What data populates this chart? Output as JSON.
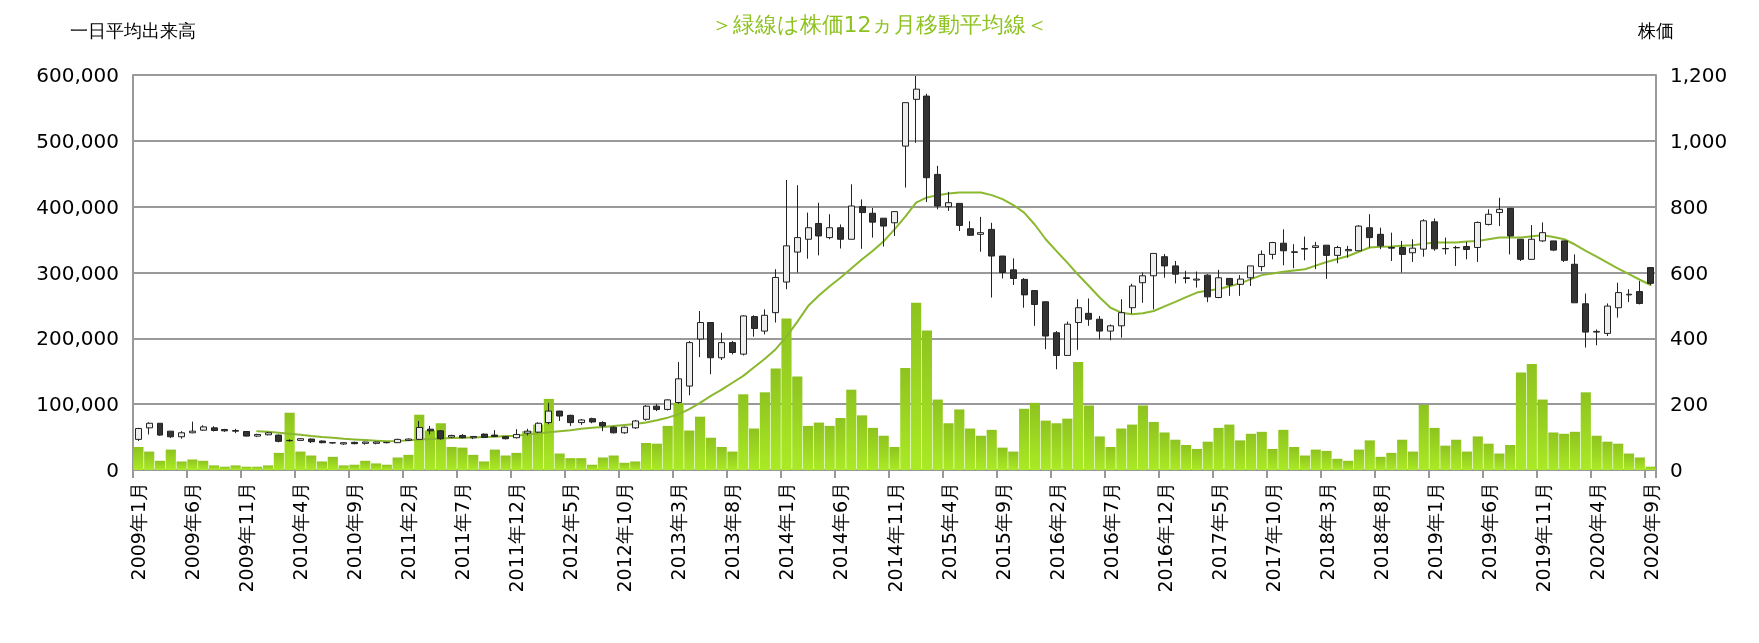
{
  "chart_data": {
    "type": "bar",
    "title": "＞緑線は株価12ヵ月移動平均線＜",
    "ylabel": "一日平均出来高",
    "y2label": "株価",
    "categories": [
      "2009年1月",
      null,
      null,
      null,
      null,
      "2009年6月",
      null,
      null,
      null,
      null,
      "2009年11月",
      null,
      null,
      null,
      null,
      "2010年4月",
      null,
      null,
      null,
      null,
      "2010年9月",
      null,
      null,
      null,
      null,
      "2011年2月",
      null,
      null,
      null,
      null,
      "2011年7月",
      null,
      null,
      null,
      null,
      "2011年12月",
      null,
      null,
      null,
      null,
      "2012年5月",
      null,
      null,
      null,
      null,
      "2012年10月",
      null,
      null,
      null,
      null,
      "2013年3月",
      null,
      null,
      null,
      null,
      "2013年8月",
      null,
      null,
      null,
      null,
      "2014年1月",
      null,
      null,
      null,
      null,
      "2014年6月",
      null,
      null,
      null,
      null,
      "2014年11月",
      null,
      null,
      null,
      null,
      "2015年4月",
      null,
      null,
      null,
      null,
      "2015年9月",
      null,
      null,
      null,
      null,
      "2016年2月",
      null,
      null,
      null,
      null,
      "2016年7月",
      null,
      null,
      null,
      null,
      "2016年12月",
      null,
      null,
      null,
      null,
      "2017年5月",
      null,
      null,
      null,
      null,
      "2017年10月",
      null,
      null,
      null,
      null,
      "2018年3月",
      null,
      null,
      null,
      null,
      "2018年8月",
      null,
      null,
      null,
      null,
      "2019年1月",
      null,
      null,
      null,
      null,
      "2019年6月",
      null,
      null,
      null,
      null,
      "2019年11月",
      null,
      null,
      null,
      null,
      "2020年4月",
      null,
      null,
      null,
      null,
      "2020年9月"
    ],
    "series": [
      {
        "color": "#8ec31f",
        "values": [
          35000,
          28000,
          14000,
          31000,
          13000,
          16000,
          14000,
          7000,
          5000,
          7000,
          5000,
          5000,
          7000,
          26000,
          87000,
          28000,
          22000,
          13000,
          20000,
          7000,
          8000,
          14000,
          10000,
          8000,
          19000,
          23000,
          84000,
          60000,
          71000,
          35000,
          34000,
          23000,
          13000,
          31000,
          22000,
          26000,
          59000,
          69000,
          108000,
          25000,
          18000,
          18000,
          8000,
          19000,
          22000,
          11000,
          13000,
          41000,
          40000,
          67000,
          102000,
          60000,
          81000,
          49000,
          35000,
          28000,
          115000,
          63000,
          118000,
          154000,
          230000,
          142000,
          67000,
          72000,
          67000,
          79000,
          122000,
          83000,
          64000,
          52000,
          35000,
          155000,
          254000,
          212000,
          107000,
          71000,
          92000,
          63000,
          52000,
          61000,
          34000,
          28000,
          93000,
          102000,
          75000,
          71000,
          78000,
          164000,
          98000,
          51000,
          35000,
          63000,
          69000,
          98000,
          73000,
          57000,
          46000,
          38000,
          32000,
          43000,
          64000,
          69000,
          45000,
          55000,
          58000,
          32000,
          61000,
          35000,
          22000,
          31000,
          29000,
          17000,
          14000,
          31000,
          45000,
          20000,
          26000,
          46000,
          28000,
          99000,
          64000,
          37000,
          46000,
          28000,
          51000,
          40000,
          25000,
          38000,
          148000,
          161000,
          107000,
          57000,
          55000,
          58000,
          118000,
          52000,
          43000,
          40000,
          25000,
          19000,
          5000
        ]
      },
      {
        "type": "candlestick",
        "axis": "y2",
        "ohlc": [
          [
            93,
            128,
            88,
            126
          ],
          [
            128,
            145,
            108,
            142
          ],
          [
            142,
            142,
            104,
            106
          ],
          [
            118,
            118,
            97,
            101
          ],
          [
            101,
            118,
            95,
            113
          ],
          [
            113,
            147,
            112,
            118
          ],
          [
            121,
            136,
            119,
            131
          ],
          [
            128,
            133,
            117,
            120
          ],
          [
            123,
            125,
            116,
            119
          ],
          [
            120,
            125,
            112,
            118
          ],
          [
            117,
            118,
            102,
            103
          ],
          [
            103,
            110,
            100,
            108
          ],
          [
            107,
            116,
            105,
            113
          ],
          [
            106,
            108,
            84,
            87
          ],
          [
            89,
            93,
            86,
            90
          ],
          [
            90,
            97,
            88,
            95
          ],
          [
            94,
            96,
            82,
            86
          ],
          [
            88,
            90,
            81,
            83
          ],
          [
            82,
            84,
            80,
            83
          ],
          [
            79,
            84,
            76,
            83
          ],
          [
            84,
            86,
            78,
            80
          ],
          [
            81,
            86,
            77,
            85
          ],
          [
            81,
            86,
            78,
            85
          ],
          [
            83,
            85,
            81,
            84
          ],
          [
            83,
            95,
            82,
            93
          ],
          [
            90,
            96,
            88,
            94
          ],
          [
            93,
            149,
            91,
            129
          ],
          [
            124,
            134,
            108,
            119
          ],
          [
            119,
            121,
            92,
            95
          ],
          [
            100,
            107,
            97,
            105
          ],
          [
            105,
            109,
            96,
            98
          ],
          [
            98,
            103,
            94,
            102
          ],
          [
            109,
            111,
            97,
            99
          ],
          [
            106,
            121,
            100,
            102
          ],
          [
            101,
            103,
            93,
            95
          ],
          [
            98,
            124,
            96,
            108
          ],
          [
            112,
            125,
            105,
            118
          ],
          [
            115,
            145,
            112,
            142
          ],
          [
            144,
            204,
            139,
            179
          ],
          [
            179,
            180,
            149,
            164
          ],
          [
            166,
            168,
            134,
            144
          ],
          [
            144,
            155,
            137,
            152
          ],
          [
            156,
            159,
            142,
            146
          ],
          [
            144,
            148,
            118,
            134
          ],
          [
            130,
            132,
            111,
            113
          ],
          [
            113,
            132,
            110,
            130
          ],
          [
            128,
            152,
            125,
            149
          ],
          [
            154,
            197,
            150,
            194
          ],
          [
            194,
            201,
            179,
            184
          ],
          [
            184,
            215,
            181,
            213
          ],
          [
            205,
            328,
            201,
            277
          ],
          [
            255,
            392,
            227,
            387
          ],
          [
            398,
            483,
            343,
            448
          ],
          [
            448,
            448,
            291,
            341
          ],
          [
            341,
            417,
            334,
            387
          ],
          [
            387,
            392,
            351,
            357
          ],
          [
            352,
            470,
            348,
            468
          ],
          [
            466,
            470,
            405,
            430
          ],
          [
            422,
            488,
            412,
            470
          ],
          [
            478,
            610,
            448,
            585
          ],
          [
            571,
            881,
            549,
            681
          ],
          [
            662,
            865,
            600,
            706
          ],
          [
            701,
            782,
            642,
            736
          ],
          [
            749,
            812,
            652,
            711
          ],
          [
            706,
            777,
            701,
            736
          ],
          [
            736,
            746,
            673,
            701
          ],
          [
            701,
            868,
            701,
            802
          ],
          [
            800,
            822,
            672,
            782
          ],
          [
            780,
            796,
            706,
            753
          ],
          [
            765,
            765,
            679,
            741
          ],
          [
            751,
            785,
            711,
            785
          ],
          [
            984,
            1116,
            858,
            1116
          ],
          [
            1126,
            1197,
            994,
            1157
          ],
          [
            1136,
            1143,
            814,
            888
          ],
          [
            898,
            924,
            792,
            802
          ],
          [
            800,
            845,
            787,
            812
          ],
          [
            810,
            810,
            726,
            743
          ],
          [
            733,
            756,
            711,
            713
          ],
          [
            716,
            769,
            663,
            721
          ],
          [
            731,
            751,
            524,
            650
          ],
          [
            650,
            650,
            582,
            600
          ],
          [
            608,
            643,
            562,
            582
          ],
          [
            579,
            583,
            493,
            532
          ],
          [
            545,
            545,
            438,
            503
          ],
          [
            511,
            511,
            367,
            407
          ],
          [
            417,
            422,
            306,
            348
          ],
          [
            348,
            451,
            348,
            443
          ],
          [
            448,
            519,
            365,
            493
          ],
          [
            476,
            521,
            438,
            458
          ],
          [
            458,
            468,
            397,
            422
          ],
          [
            422,
            442,
            394,
            438
          ],
          [
            438,
            519,
            402,
            478
          ],
          [
            493,
            566,
            475,
            559
          ],
          [
            569,
            600,
            508,
            590
          ],
          [
            590,
            658,
            488,
            658
          ],
          [
            648,
            656,
            584,
            620
          ],
          [
            620,
            635,
            567,
            595
          ],
          [
            584,
            605,
            567,
            582
          ],
          [
            577,
            603,
            554,
            580
          ],
          [
            592,
            595,
            510,
            526
          ],
          [
            524,
            608,
            522,
            584
          ],
          [
            582,
            582,
            529,
            562
          ],
          [
            564,
            592,
            529,
            580
          ],
          [
            584,
            620,
            559,
            620
          ],
          [
            618,
            667,
            604,
            655
          ],
          [
            655,
            693,
            640,
            691
          ],
          [
            689,
            731,
            622,
            666
          ],
          [
            661,
            686,
            613,
            663
          ],
          [
            671,
            709,
            637,
            673
          ],
          [
            676,
            693,
            610,
            681
          ],
          [
            683,
            683,
            581,
            652
          ],
          [
            652,
            681,
            628,
            676
          ],
          [
            666,
            681,
            645,
            670
          ],
          [
            666,
            744,
            666,
            741
          ],
          [
            736,
            777,
            676,
            706
          ],
          [
            716,
            736,
            671,
            681
          ],
          [
            676,
            721,
            635,
            674
          ],
          [
            676,
            696,
            600,
            655
          ],
          [
            660,
            701,
            632,
            674
          ],
          [
            671,
            762,
            648,
            757
          ],
          [
            754,
            764,
            666,
            672
          ],
          [
            673,
            706,
            655,
            672
          ],
          [
            676,
            681,
            620,
            675
          ],
          [
            679,
            693,
            640,
            670
          ],
          [
            676,
            755,
            632,
            752
          ],
          [
            746,
            792,
            743,
            777
          ],
          [
            782,
            827,
            741,
            792
          ],
          [
            795,
            795,
            655,
            711
          ],
          [
            701,
            701,
            635,
            640
          ],
          [
            640,
            744,
            640,
            701
          ],
          [
            696,
            752,
            693,
            721
          ],
          [
            696,
            696,
            665,
            668
          ],
          [
            696,
            696,
            632,
            637
          ],
          [
            625,
            655,
            508,
            508
          ],
          [
            505,
            536,
            372,
            419
          ],
          [
            419,
            427,
            379,
            421
          ],
          [
            415,
            506,
            407,
            498
          ],
          [
            493,
            569,
            463,
            539
          ],
          [
            532,
            549,
            510,
            534
          ],
          [
            542,
            574,
            503,
            506
          ],
          [
            615,
            615,
            562,
            567
          ]
        ]
      },
      {
        "type": "line",
        "axis": "y2",
        "color": "#8ab82e",
        "values": [
          null,
          null,
          null,
          null,
          null,
          null,
          null,
          null,
          null,
          null,
          null,
          118,
          116,
          113,
          110,
          107,
          103,
          100,
          98,
          95,
          93,
          91,
          89,
          87,
          88,
          90,
          93,
          94,
          96,
          97,
          98,
          99,
          100,
          101,
          103,
          104,
          108,
          111,
          115,
          118,
          121,
          125,
          128,
          131,
          134,
          137,
          140,
          144,
          151,
          159,
          169,
          185,
          204,
          225,
          244,
          265,
          286,
          312,
          338,
          367,
          405,
          450,
          498,
          530,
          558,
          584,
          612,
          640,
          666,
          695,
          731,
          770,
          812,
          828,
          835,
          840,
          843,
          843,
          843,
          835,
          823,
          805,
          782,
          745,
          701,
          665,
          630,
          593,
          559,
          524,
          493,
          478,
          473,
          476,
          483,
          497,
          511,
          525,
          539,
          545,
          549,
          558,
          567,
          580,
          592,
          597,
          602,
          606,
          610,
          621,
          632,
          641,
          650,
          663,
          676,
          678,
          679,
          681,
          683,
          687,
          691,
          691,
          691,
          694,
          696,
          701,
          706,
          706,
          706,
          710,
          713,
          708,
          701,
          685,
          666,
          648,
          630,
          612,
          595,
          578,
          562
        ]
      }
    ],
    "ylim": [
      0,
      600000
    ],
    "yticks": [
      0,
      {
        "value": 100000,
        "label": "100,000"
      },
      {
        "value": 200000,
        "label": "200,000"
      },
      {
        "value": 300000,
        "label": "300,000"
      },
      {
        "value": 400000,
        "label": "400,000"
      },
      {
        "value": 500000,
        "label": "500,000"
      },
      {
        "value": 600000,
        "label": "600,000"
      }
    ],
    "y2lim": [
      0,
      1200
    ],
    "y2ticks": [
      0,
      200,
      400,
      600,
      800,
      {
        "value": 1000,
        "label": "1,000"
      },
      {
        "value": 1200,
        "label": "1,200"
      }
    ],
    "grid": "y"
  }
}
